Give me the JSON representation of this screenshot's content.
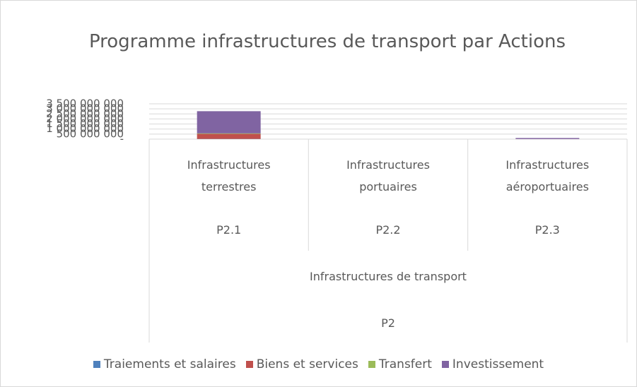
{
  "chart_data": {
    "type": "stacked_bar",
    "title": "Programme infrastructures de transport par Actions",
    "categories": [
      "Infrastructures terrestres",
      "Infrastructures portuaires",
      "Infrastructures aéroportuaires"
    ],
    "category_codes": [
      "P2.1",
      "P2.2",
      "P2.3"
    ],
    "group": {
      "label": "Infrastructures de transport",
      "code": "P2"
    },
    "series": [
      {
        "name": "Traiements et salaires",
        "color": "#4f81bd",
        "values": [
          20000000,
          0,
          0
        ]
      },
      {
        "name": "Biens et services",
        "color": "#c0504d",
        "values": [
          500000000,
          0,
          10000000
        ]
      },
      {
        "name": "Transfert",
        "color": "#9bbb59",
        "values": [
          50000000,
          0,
          0
        ]
      },
      {
        "name": "Investissement",
        "color": "#8064a2",
        "values": [
          2200000000,
          0,
          100000000
        ]
      }
    ],
    "ylim": [
      0,
      3500000000
    ],
    "yticks": [
      {
        "value": 0,
        "label": "-"
      },
      {
        "value": 500000000,
        "label": "500 000 000"
      },
      {
        "value": 1000000000,
        "label": "1 000 000 000"
      },
      {
        "value": 1500000000,
        "label": "1 500 000 000"
      },
      {
        "value": 2000000000,
        "label": "2 000 000 000"
      },
      {
        "value": 2500000000,
        "label": "2 500 000 000"
      },
      {
        "value": 3000000000,
        "label": "3 000 000 000"
      },
      {
        "value": 3500000000,
        "label": "3 500 000 000"
      }
    ],
    "grid": true,
    "legend": "bottom"
  }
}
